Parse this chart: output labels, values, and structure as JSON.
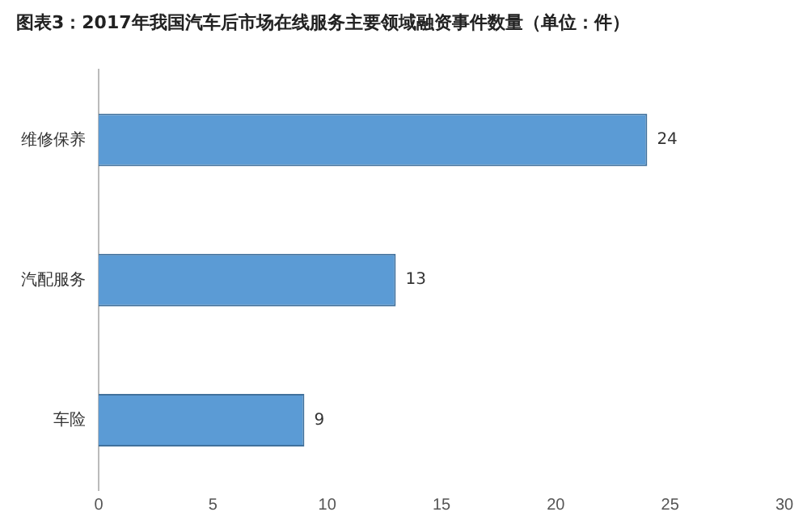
{
  "chart_data": {
    "type": "bar",
    "orientation": "horizontal",
    "title": "图表3：2017年我国汽车后市场在线服务主要领域融资事件数量（单位：件）",
    "categories": [
      "维修保养",
      "汽配服务",
      "车险"
    ],
    "values": [
      24,
      13,
      9
    ],
    "color": "#5b9bd5",
    "xlim": [
      0,
      30
    ],
    "xticks": [
      0,
      5,
      10,
      15,
      20,
      25,
      30
    ],
    "grid": false,
    "legend": false,
    "data_labels": true
  }
}
